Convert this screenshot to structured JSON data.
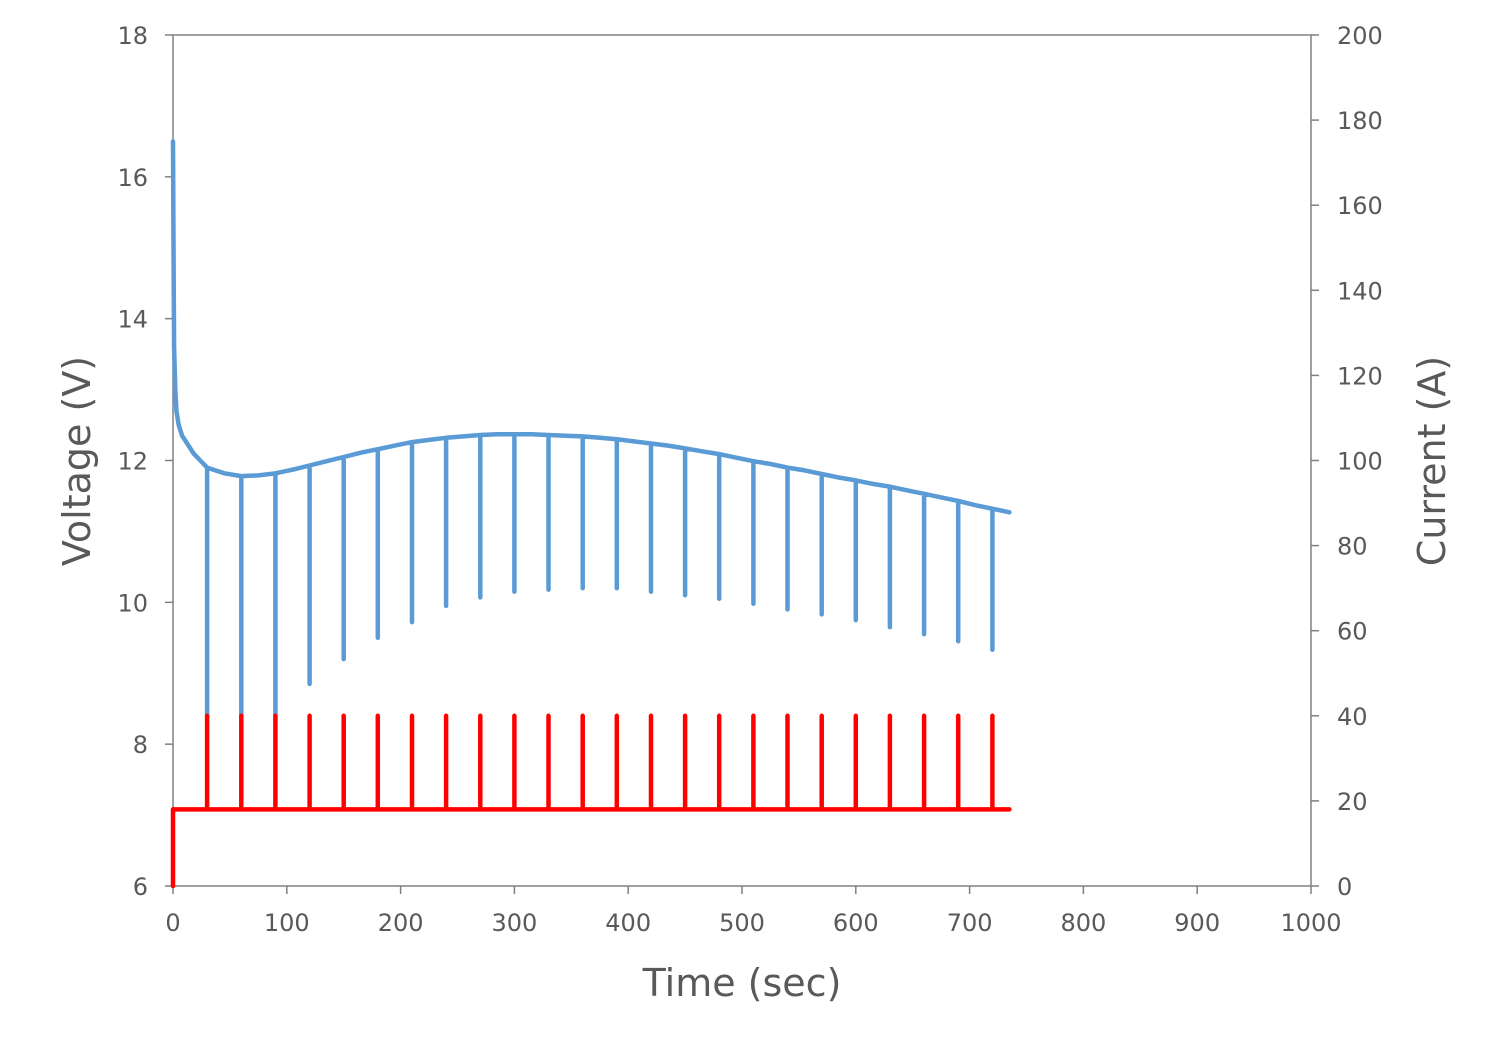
{
  "chart_data": {
    "type": "line",
    "title": "",
    "xlabel": "Time (sec)",
    "ylabel": "Voltage (V)",
    "y2label": "Current (A)",
    "xlim": [
      0,
      1000
    ],
    "ylim": [
      6,
      18
    ],
    "y2lim": [
      0,
      200
    ],
    "xticks": [
      "0",
      "100",
      "200",
      "300",
      "400",
      "500",
      "600",
      "700",
      "800",
      "900",
      "1000"
    ],
    "yticks": [
      "6",
      "8",
      "10",
      "12",
      "14",
      "16",
      "18"
    ],
    "y2ticks": [
      "0",
      "20",
      "40",
      "60",
      "80",
      "100",
      "120",
      "140",
      "160",
      "180",
      "200"
    ],
    "grid": false,
    "legend": "none",
    "colors": {
      "voltage": "#5b9bd5",
      "current": "#ff0000",
      "axis": "#808080",
      "text": "#595959"
    },
    "series": [
      {
        "axis": "left",
        "color": "#5b9bd5",
        "points": [
          [
            0,
            16.5
          ],
          [
            0.5,
            14.8
          ],
          [
            1,
            13.6
          ],
          [
            2,
            13.0
          ],
          [
            3,
            12.7
          ],
          [
            5,
            12.5
          ],
          [
            8,
            12.35
          ],
          [
            12,
            12.25
          ],
          [
            18,
            12.1
          ],
          [
            24,
            12.0
          ],
          [
            30,
            11.9
          ],
          [
            30,
            8.4
          ],
          [
            30,
            11.9
          ],
          [
            45,
            11.82
          ],
          [
            60,
            11.78
          ],
          [
            60,
            8.4
          ],
          [
            60,
            11.78
          ],
          [
            75,
            11.79
          ],
          [
            90,
            11.82
          ],
          [
            90,
            8.4
          ],
          [
            90,
            11.82
          ],
          [
            105,
            11.87
          ],
          [
            120,
            11.93
          ],
          [
            120,
            8.85
          ],
          [
            120,
            11.93
          ],
          [
            135,
            11.99
          ],
          [
            150,
            12.05
          ],
          [
            150,
            9.2
          ],
          [
            150,
            12.05
          ],
          [
            165,
            12.11
          ],
          [
            180,
            12.16
          ],
          [
            180,
            9.5
          ],
          [
            180,
            12.16
          ],
          [
            195,
            12.21
          ],
          [
            210,
            12.26
          ],
          [
            210,
            9.72
          ],
          [
            210,
            12.26
          ],
          [
            225,
            12.29
          ],
          [
            240,
            12.32
          ],
          [
            240,
            9.95
          ],
          [
            240,
            12.32
          ],
          [
            255,
            12.34
          ],
          [
            270,
            12.36
          ],
          [
            270,
            10.07
          ],
          [
            270,
            12.36
          ],
          [
            285,
            12.37
          ],
          [
            300,
            12.37
          ],
          [
            300,
            10.15
          ],
          [
            300,
            12.37
          ],
          [
            315,
            12.37
          ],
          [
            330,
            12.36
          ],
          [
            330,
            10.18
          ],
          [
            330,
            12.36
          ],
          [
            345,
            12.35
          ],
          [
            360,
            12.34
          ],
          [
            360,
            10.2
          ],
          [
            360,
            12.34
          ],
          [
            375,
            12.32
          ],
          [
            390,
            12.3
          ],
          [
            390,
            10.2
          ],
          [
            390,
            12.3
          ],
          [
            405,
            12.27
          ],
          [
            420,
            12.24
          ],
          [
            420,
            10.15
          ],
          [
            420,
            12.24
          ],
          [
            435,
            12.21
          ],
          [
            450,
            12.17
          ],
          [
            450,
            10.1
          ],
          [
            450,
            12.17
          ],
          [
            465,
            12.13
          ],
          [
            480,
            12.09
          ],
          [
            480,
            10.05
          ],
          [
            480,
            12.09
          ],
          [
            495,
            12.04
          ],
          [
            510,
            11.99
          ],
          [
            510,
            9.98
          ],
          [
            510,
            11.99
          ],
          [
            525,
            11.95
          ],
          [
            540,
            11.9
          ],
          [
            540,
            9.9
          ],
          [
            540,
            11.9
          ],
          [
            555,
            11.86
          ],
          [
            570,
            11.81
          ],
          [
            570,
            9.83
          ],
          [
            570,
            11.81
          ],
          [
            585,
            11.76
          ],
          [
            600,
            11.72
          ],
          [
            600,
            9.75
          ],
          [
            600,
            11.72
          ],
          [
            615,
            11.67
          ],
          [
            630,
            11.63
          ],
          [
            630,
            9.65
          ],
          [
            630,
            11.63
          ],
          [
            645,
            11.58
          ],
          [
            660,
            11.53
          ],
          [
            660,
            9.55
          ],
          [
            660,
            11.53
          ],
          [
            675,
            11.48
          ],
          [
            690,
            11.43
          ],
          [
            690,
            9.45
          ],
          [
            690,
            11.43
          ],
          [
            705,
            11.37
          ],
          [
            720,
            11.32
          ],
          [
            720,
            9.33
          ],
          [
            720,
            11.32
          ],
          [
            735,
            11.27
          ]
        ]
      },
      {
        "axis": "right",
        "color": "#ff0000",
        "points": [
          [
            0,
            0
          ],
          [
            0,
            18
          ],
          [
            30,
            18
          ],
          [
            30,
            40
          ],
          [
            30,
            18
          ],
          [
            60,
            18
          ],
          [
            60,
            40
          ],
          [
            60,
            18
          ],
          [
            90,
            18
          ],
          [
            90,
            40
          ],
          [
            90,
            18
          ],
          [
            120,
            18
          ],
          [
            120,
            40
          ],
          [
            120,
            18
          ],
          [
            150,
            18
          ],
          [
            150,
            40
          ],
          [
            150,
            18
          ],
          [
            180,
            18
          ],
          [
            180,
            40
          ],
          [
            180,
            18
          ],
          [
            210,
            18
          ],
          [
            210,
            40
          ],
          [
            210,
            18
          ],
          [
            240,
            18
          ],
          [
            240,
            40
          ],
          [
            240,
            18
          ],
          [
            270,
            18
          ],
          [
            270,
            40
          ],
          [
            270,
            18
          ],
          [
            300,
            18
          ],
          [
            300,
            40
          ],
          [
            300,
            18
          ],
          [
            330,
            18
          ],
          [
            330,
            40
          ],
          [
            330,
            18
          ],
          [
            360,
            18
          ],
          [
            360,
            40
          ],
          [
            360,
            18
          ],
          [
            390,
            18
          ],
          [
            390,
            40
          ],
          [
            390,
            18
          ],
          [
            420,
            18
          ],
          [
            420,
            40
          ],
          [
            420,
            18
          ],
          [
            450,
            18
          ],
          [
            450,
            40
          ],
          [
            450,
            18
          ],
          [
            480,
            18
          ],
          [
            480,
            40
          ],
          [
            480,
            18
          ],
          [
            510,
            18
          ],
          [
            510,
            40
          ],
          [
            510,
            18
          ],
          [
            540,
            18
          ],
          [
            540,
            40
          ],
          [
            540,
            18
          ],
          [
            570,
            18
          ],
          [
            570,
            40
          ],
          [
            570,
            18
          ],
          [
            600,
            18
          ],
          [
            600,
            40
          ],
          [
            600,
            18
          ],
          [
            630,
            18
          ],
          [
            630,
            40
          ],
          [
            630,
            18
          ],
          [
            660,
            18
          ],
          [
            660,
            40
          ],
          [
            660,
            18
          ],
          [
            690,
            18
          ],
          [
            690,
            40
          ],
          [
            690,
            18
          ],
          [
            720,
            18
          ],
          [
            720,
            40
          ],
          [
            720,
            18
          ],
          [
            735,
            18
          ]
        ]
      }
    ]
  }
}
